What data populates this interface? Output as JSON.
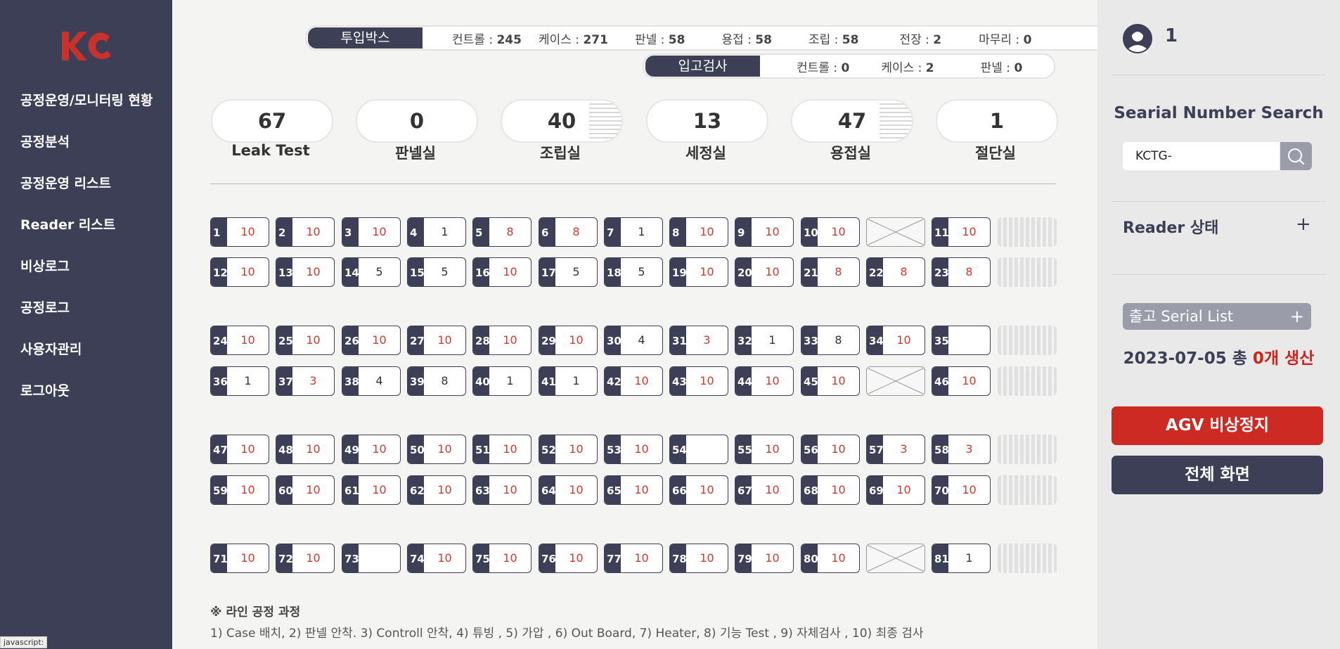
{
  "nav": {
    "items": [
      "공정운영/모니터링 현황",
      "공정분석",
      "공정운영 리스트",
      "Reader 리스트",
      "비상로그",
      "공정로그",
      "사용자관리",
      "로그아웃"
    ]
  },
  "status_bar_text": "javascript:",
  "input_box": {
    "title": "투입박스",
    "items": [
      {
        "label": "컨트롤 : ",
        "value": "245"
      },
      {
        "label": "케이스 : ",
        "value": "271"
      },
      {
        "label": "판넬 : ",
        "value": "58"
      },
      {
        "label": "용접 : ",
        "value": "58"
      },
      {
        "label": "조립 : ",
        "value": "58"
      },
      {
        "label": "전장 : ",
        "value": "2"
      },
      {
        "label": "마무리 : ",
        "value": "0"
      }
    ]
  },
  "incoming_inspection": {
    "title": "입고검사",
    "items": [
      {
        "label": "컨트롤 : ",
        "value": "0"
      },
      {
        "label": "케이스 : ",
        "value": "2"
      },
      {
        "label": "판넬 : ",
        "value": "0"
      }
    ]
  },
  "rooms": [
    {
      "value": "67",
      "label": "Leak Test",
      "striped": false
    },
    {
      "value": "0",
      "label": "판넬실",
      "striped": false
    },
    {
      "value": "40",
      "label": "조립실",
      "striped": true
    },
    {
      "value": "13",
      "label": "세정실",
      "striped": false
    },
    {
      "value": "47",
      "label": "용접실",
      "striped": true
    },
    {
      "value": "1",
      "label": "절단실",
      "striped": false
    }
  ],
  "rows": [
    [
      {
        "id": "1",
        "v": "10",
        "red": true
      },
      {
        "id": "2",
        "v": "10",
        "red": true
      },
      {
        "id": "3",
        "v": "10",
        "red": true
      },
      {
        "id": "4",
        "v": "1",
        "red": false
      },
      {
        "id": "5",
        "v": "8",
        "red": true
      },
      {
        "id": "6",
        "v": "8",
        "red": true
      },
      {
        "id": "7",
        "v": "1",
        "red": false
      },
      {
        "id": "8",
        "v": "10",
        "red": true
      },
      {
        "id": "9",
        "v": "10",
        "red": true
      },
      {
        "id": "10",
        "v": "10",
        "red": true
      },
      {
        "x": true
      },
      {
        "id": "11",
        "v": "10",
        "red": true
      },
      {
        "s": true
      }
    ],
    [
      {
        "id": "12",
        "v": "10",
        "red": true
      },
      {
        "id": "13",
        "v": "10",
        "red": true
      },
      {
        "id": "14",
        "v": "5",
        "red": false
      },
      {
        "id": "15",
        "v": "5",
        "red": false
      },
      {
        "id": "16",
        "v": "10",
        "red": true
      },
      {
        "id": "17",
        "v": "5",
        "red": false
      },
      {
        "id": "18",
        "v": "5",
        "red": false
      },
      {
        "id": "19",
        "v": "10",
        "red": true
      },
      {
        "id": "20",
        "v": "10",
        "red": true
      },
      {
        "id": "21",
        "v": "8",
        "red": true
      },
      {
        "id": "22",
        "v": "8",
        "red": true
      },
      {
        "id": "23",
        "v": "8",
        "red": true
      },
      {
        "s": true
      }
    ],
    [
      {
        "id": "24",
        "v": "10",
        "red": true
      },
      {
        "id": "25",
        "v": "10",
        "red": true
      },
      {
        "id": "26",
        "v": "10",
        "red": true
      },
      {
        "id": "27",
        "v": "10",
        "red": true
      },
      {
        "id": "28",
        "v": "10",
        "red": true
      },
      {
        "id": "29",
        "v": "10",
        "red": true
      },
      {
        "id": "30",
        "v": "4",
        "red": false
      },
      {
        "id": "31",
        "v": "3",
        "red": true
      },
      {
        "id": "32",
        "v": "1",
        "red": false
      },
      {
        "id": "33",
        "v": "8",
        "red": false
      },
      {
        "id": "34",
        "v": "10",
        "red": true
      },
      {
        "id": "35",
        "v": "",
        "red": false
      },
      {
        "s": true
      }
    ],
    [
      {
        "id": "36",
        "v": "1",
        "red": false
      },
      {
        "id": "37",
        "v": "3",
        "red": true
      },
      {
        "id": "38",
        "v": "4",
        "red": false
      },
      {
        "id": "39",
        "v": "8",
        "red": false
      },
      {
        "id": "40",
        "v": "1",
        "red": false
      },
      {
        "id": "41",
        "v": "1",
        "red": false
      },
      {
        "id": "42",
        "v": "10",
        "red": true
      },
      {
        "id": "43",
        "v": "10",
        "red": true
      },
      {
        "id": "44",
        "v": "10",
        "red": true
      },
      {
        "id": "45",
        "v": "10",
        "red": true
      },
      {
        "x": true
      },
      {
        "id": "46",
        "v": "10",
        "red": true
      },
      {
        "s": true
      }
    ],
    [
      {
        "id": "47",
        "v": "10",
        "red": true
      },
      {
        "id": "48",
        "v": "10",
        "red": true
      },
      {
        "id": "49",
        "v": "10",
        "red": true
      },
      {
        "id": "50",
        "v": "10",
        "red": true
      },
      {
        "id": "51",
        "v": "10",
        "red": true
      },
      {
        "id": "52",
        "v": "10",
        "red": true
      },
      {
        "id": "53",
        "v": "10",
        "red": true
      },
      {
        "id": "54",
        "v": "",
        "red": false
      },
      {
        "id": "55",
        "v": "10",
        "red": true
      },
      {
        "id": "56",
        "v": "10",
        "red": true
      },
      {
        "id": "57",
        "v": "3",
        "red": true
      },
      {
        "id": "58",
        "v": "3",
        "red": true
      },
      {
        "s": true
      }
    ],
    [
      {
        "id": "59",
        "v": "10",
        "red": true
      },
      {
        "id": "60",
        "v": "10",
        "red": true
      },
      {
        "id": "61",
        "v": "10",
        "red": true
      },
      {
        "id": "62",
        "v": "10",
        "red": true
      },
      {
        "id": "63",
        "v": "10",
        "red": true
      },
      {
        "id": "64",
        "v": "10",
        "red": true
      },
      {
        "id": "65",
        "v": "10",
        "red": true
      },
      {
        "id": "66",
        "v": "10",
        "red": true
      },
      {
        "id": "67",
        "v": "10",
        "red": true
      },
      {
        "id": "68",
        "v": "10",
        "red": true
      },
      {
        "id": "69",
        "v": "10",
        "red": true
      },
      {
        "id": "70",
        "v": "10",
        "red": true
      },
      {
        "s": true
      }
    ],
    [
      {
        "id": "71",
        "v": "10",
        "red": true
      },
      {
        "id": "72",
        "v": "10",
        "red": true
      },
      {
        "id": "73",
        "v": "",
        "red": false
      },
      {
        "id": "74",
        "v": "10",
        "red": true
      },
      {
        "id": "75",
        "v": "10",
        "red": true
      },
      {
        "id": "76",
        "v": "10",
        "red": true
      },
      {
        "id": "77",
        "v": "10",
        "red": true
      },
      {
        "id": "78",
        "v": "10",
        "red": true
      },
      {
        "id": "79",
        "v": "10",
        "red": true
      },
      {
        "id": "80",
        "v": "10",
        "red": true
      },
      {
        "x": true
      },
      {
        "id": "81",
        "v": "1",
        "red": false
      },
      {
        "s": true
      }
    ]
  ],
  "note": {
    "title": "※ 라인 공정 과정",
    "text": "1) Case 배치, 2) 판넬 안착. 3) Controll 안착, 4) 튜빙 , 5) 가압 , 6) Out Board, 7) Heater, 8) 기능 Test , 9) 자체검사 , 10) 최종 검사"
  },
  "right_panel": {
    "user_count": "1",
    "serial_search_title": "Searial Number Search",
    "search_value": "KCTG-",
    "reader_status_title": "Reader 상태",
    "plus_symbol": "+",
    "out_serial_title": "출고 Serial List",
    "production": {
      "date": "2023-07-05 총 ",
      "count": "0개 생산"
    },
    "agv_button": "AGV 비상정지",
    "fullscreen_button": "전체 화면"
  },
  "colors": {
    "navy": "#3d3f57",
    "red": "#d23a2e",
    "agv_red": "#cc2a22"
  }
}
